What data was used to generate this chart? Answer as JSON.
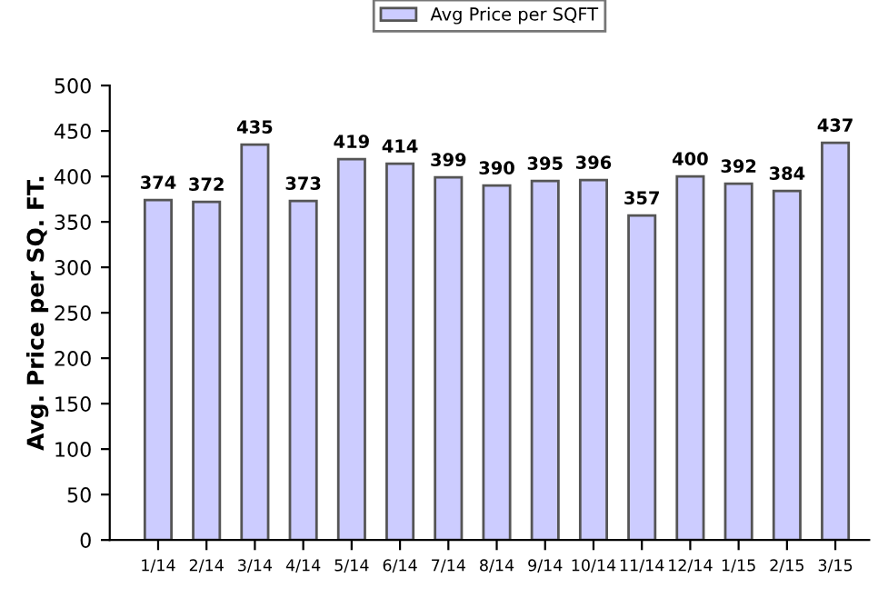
{
  "chart_data": {
    "type": "bar",
    "ylabel": "Avg. Price per SQ. FT.",
    "categories": [
      "1/14",
      "2/14",
      "3/14",
      "4/14",
      "5/14",
      "6/14",
      "7/14",
      "8/14",
      "9/14",
      "10/14",
      "11/14",
      "12/14",
      "1/15",
      "2/15",
      "3/15"
    ],
    "series": [
      {
        "name": "Avg Price per SQFT",
        "color": "#ccccff",
        "values": [
          374,
          372,
          435,
          373,
          419,
          414,
          399,
          390,
          395,
          396,
          357,
          400,
          392,
          384,
          437
        ]
      }
    ],
    "ylim": [
      0,
      500
    ],
    "yticks": [
      0,
      50,
      100,
      150,
      200,
      250,
      300,
      350,
      400,
      450,
      500
    ],
    "data_labels": true,
    "grid": false,
    "legend": "top"
  }
}
